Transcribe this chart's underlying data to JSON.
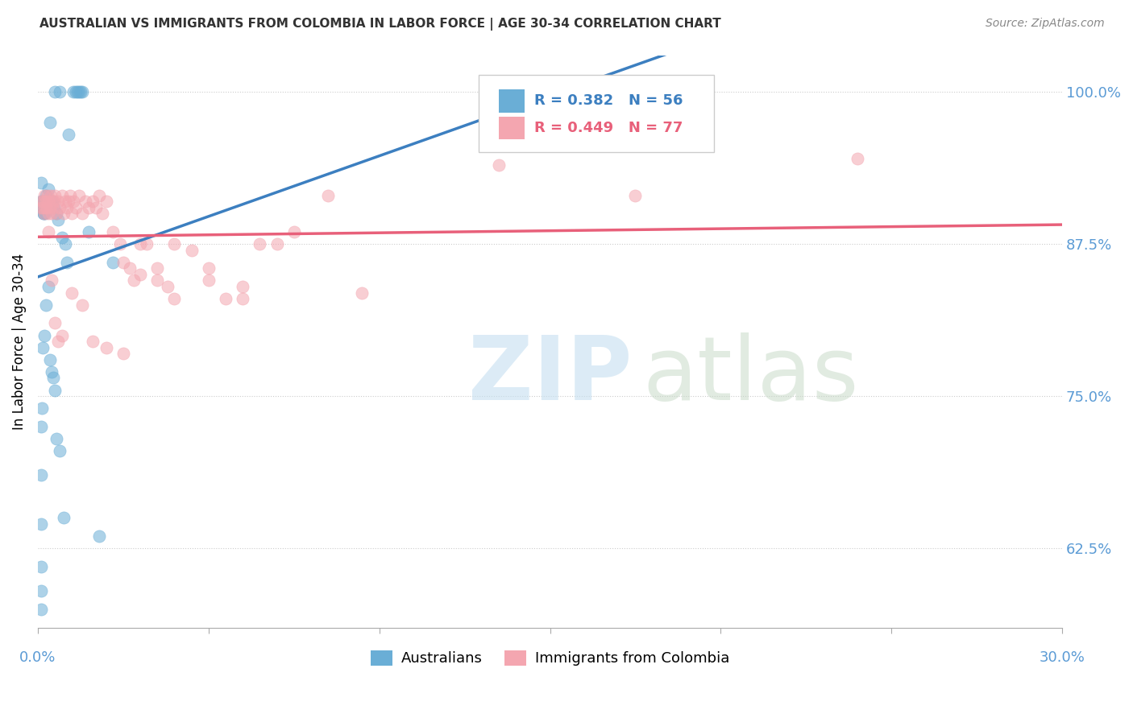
{
  "title": "AUSTRALIAN VS IMMIGRANTS FROM COLOMBIA IN LABOR FORCE | AGE 30-34 CORRELATION CHART",
  "source": "Source: ZipAtlas.com",
  "ylabel": "In Labor Force | Age 30-34",
  "xlim": [
    0.0,
    30.0
  ],
  "ylim": [
    56.0,
    103.0
  ],
  "yticks": [
    62.5,
    75.0,
    87.5,
    100.0
  ],
  "ytick_labels": [
    "62.5%",
    "75.0%",
    "87.5%",
    "100.0%"
  ],
  "background_color": "#ffffff",
  "legend_r_blue": "R = 0.382",
  "legend_n_blue": "N = 56",
  "legend_r_pink": "R = 0.449",
  "legend_n_pink": "N = 77",
  "blue_color": "#6aaed6",
  "pink_color": "#f4a6b0",
  "blue_line_color": "#3c7fc0",
  "pink_line_color": "#e8607a",
  "label_color": "#5b9bd5",
  "australians_label": "Australians",
  "colombia_label": "Immigrants from Colombia",
  "blue_scatter_x": [
    0.35,
    0.9,
    1.05,
    1.1,
    1.15,
    1.2,
    1.25,
    1.3,
    0.5,
    0.65,
    0.1,
    0.1,
    0.12,
    0.12,
    0.14,
    0.14,
    0.16,
    0.16,
    0.18,
    0.2,
    0.22,
    0.24,
    0.26,
    0.28,
    0.3,
    0.32,
    0.38,
    0.42,
    0.48,
    0.55,
    0.6,
    0.7,
    0.8,
    0.85,
    1.5,
    2.2,
    0.35,
    0.4,
    0.45,
    0.5,
    0.55,
    0.65,
    0.75,
    1.8,
    0.3,
    0.25,
    0.2,
    0.15,
    0.12,
    0.1,
    0.1,
    0.1,
    0.1,
    18.5,
    0.1,
    0.1
  ],
  "blue_scatter_y": [
    97.5,
    96.5,
    100.0,
    100.0,
    100.0,
    100.0,
    100.0,
    100.0,
    100.0,
    100.0,
    92.5,
    91.0,
    90.5,
    90.5,
    91.0,
    90.5,
    90.0,
    90.0,
    91.0,
    90.5,
    90.0,
    91.5,
    90.5,
    90.5,
    90.5,
    92.0,
    91.0,
    91.0,
    90.5,
    90.0,
    89.5,
    88.0,
    87.5,
    86.0,
    88.5,
    86.0,
    78.0,
    77.0,
    76.5,
    75.5,
    71.5,
    70.5,
    65.0,
    63.5,
    84.0,
    82.5,
    80.0,
    79.0,
    74.0,
    72.5,
    68.5,
    64.5,
    61.0,
    100.0,
    59.0,
    57.5
  ],
  "pink_scatter_x": [
    0.1,
    0.12,
    0.14,
    0.16,
    0.18,
    0.2,
    0.22,
    0.24,
    0.26,
    0.28,
    0.3,
    0.32,
    0.35,
    0.38,
    0.4,
    0.42,
    0.45,
    0.48,
    0.5,
    0.55,
    0.6,
    0.65,
    0.7,
    0.75,
    0.8,
    0.85,
    0.9,
    0.95,
    1.0,
    1.05,
    1.1,
    1.2,
    1.3,
    1.4,
    1.5,
    1.6,
    1.7,
    1.8,
    1.9,
    2.0,
    2.2,
    2.4,
    2.5,
    2.7,
    2.8,
    3.0,
    3.2,
    3.5,
    3.8,
    4.0,
    4.5,
    5.0,
    5.5,
    6.0,
    6.5,
    7.0,
    8.5,
    17.5,
    24.0,
    0.3,
    0.4,
    0.5,
    0.6,
    0.7,
    1.0,
    1.3,
    1.6,
    2.0,
    2.5,
    3.0,
    3.5,
    4.0,
    5.0,
    6.0,
    7.5,
    9.5,
    13.5
  ],
  "pink_scatter_y": [
    90.5,
    91.0,
    90.5,
    91.0,
    90.0,
    91.5,
    90.5,
    91.0,
    90.5,
    91.5,
    90.0,
    91.0,
    90.5,
    91.5,
    90.0,
    91.0,
    90.5,
    91.0,
    91.5,
    90.0,
    91.0,
    90.5,
    91.5,
    90.0,
    91.0,
    90.5,
    91.0,
    91.5,
    90.0,
    91.0,
    90.5,
    91.5,
    90.0,
    91.0,
    90.5,
    91.0,
    90.5,
    91.5,
    90.0,
    91.0,
    88.5,
    87.5,
    86.0,
    85.5,
    84.5,
    85.0,
    87.5,
    85.5,
    84.0,
    87.5,
    87.0,
    85.5,
    83.0,
    84.0,
    87.5,
    87.5,
    91.5,
    91.5,
    94.5,
    88.5,
    84.5,
    81.0,
    79.5,
    80.0,
    83.5,
    82.5,
    79.5,
    79.0,
    78.5,
    87.5,
    84.5,
    83.0,
    84.5,
    83.0,
    88.5,
    83.5,
    94.0
  ]
}
